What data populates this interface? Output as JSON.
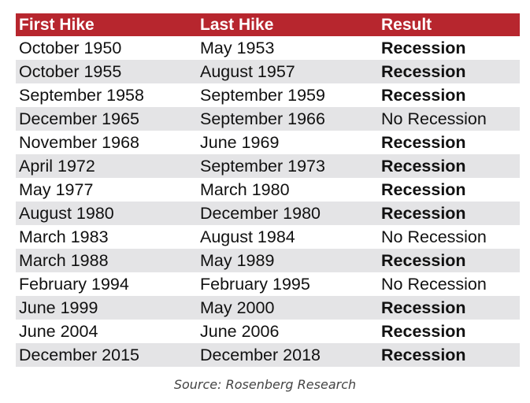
{
  "chart_data": {
    "type": "table",
    "columns": [
      "First Hike",
      "Last Hike",
      "Result"
    ],
    "rows": [
      [
        "October 1950",
        "May 1953",
        "Recession"
      ],
      [
        "October 1955",
        "August 1957",
        "Recession"
      ],
      [
        "September 1958",
        "September 1959",
        "Recession"
      ],
      [
        "December 1965",
        "September 1966",
        "No Recession"
      ],
      [
        "November 1968",
        "June 1969",
        "Recession"
      ],
      [
        "April 1972",
        "September 1973",
        "Recession"
      ],
      [
        "May 1977",
        "March 1980",
        "Recession"
      ],
      [
        "August 1980",
        "December 1980",
        "Recession"
      ],
      [
        "March 1983",
        "August 1984",
        "No Recession"
      ],
      [
        "March 1988",
        "May 1989",
        "Recession"
      ],
      [
        "February 1994",
        "February 1995",
        "No Recession"
      ],
      [
        "June 1999",
        "May 2000",
        "Recession"
      ],
      [
        "June 2004",
        "June 2006",
        "Recession"
      ],
      [
        "December 2015",
        "December 2018",
        "Recession"
      ]
    ],
    "source": "Source: Rosenberg Research"
  },
  "colors": {
    "header_bg": "#b7262e",
    "header_text": "#ffffff",
    "stripe_bg": "#e4e4e6"
  }
}
